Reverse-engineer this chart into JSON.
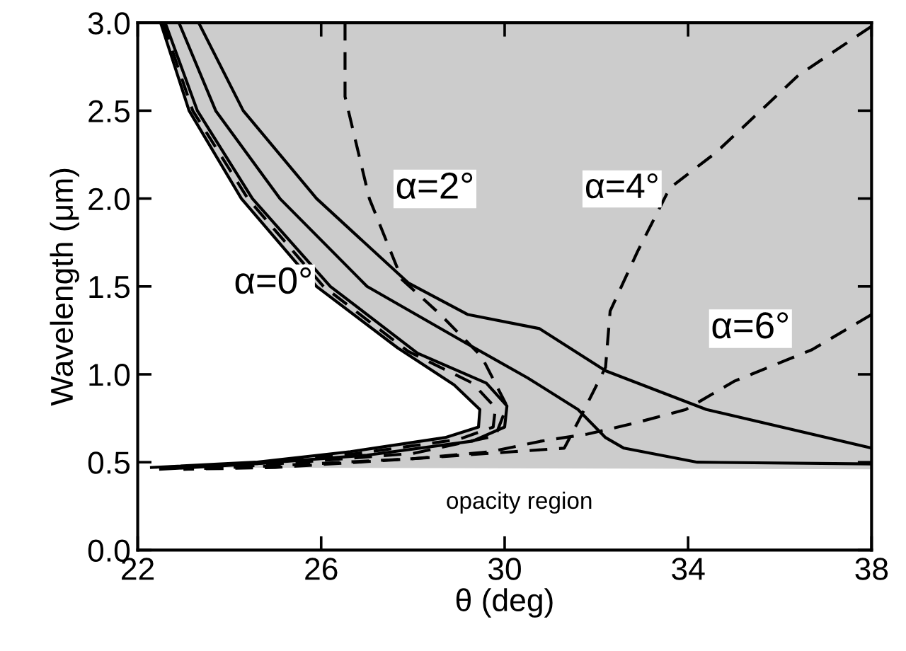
{
  "chart_data": {
    "type": "line",
    "xlabel": "θ (deg)",
    "ylabel": "Wavelength (μm)",
    "xlim": [
      22,
      38
    ],
    "xticks": [
      22,
      26,
      30,
      34,
      38
    ],
    "ylim": [
      0,
      3
    ],
    "yticks": [
      {
        "value": 0,
        "label": "0.0"
      },
      {
        "value": 0.5,
        "label": "0.5"
      },
      {
        "value": 1,
        "label": "1.0"
      },
      {
        "value": 1.5,
        "label": "1.5"
      },
      {
        "value": 2,
        "label": "2.0"
      },
      {
        "value": 2.5,
        "label": "2.5"
      },
      {
        "value": 3,
        "label": "3.0"
      }
    ],
    "grid": false,
    "legend": false,
    "series": [
      {
        "line_style": "dashed",
        "color": "#000000",
        "x": [
          22.55,
          23.2,
          24.4,
          26.05,
          27.9,
          29.3,
          29.8,
          29.75,
          29.0,
          26.8,
          24.5,
          22.4
        ],
        "values": [
          3.0,
          2.5,
          2.0,
          1.5,
          1.13,
          0.95,
          0.81,
          0.7,
          0.63,
          0.55,
          0.49,
          0.47
        ]
      },
      {
        "line_style": "solid",
        "color": "#000000",
        "x": [
          22.6,
          23.3,
          24.5,
          26.2,
          28.1,
          29.6,
          30.05,
          30.0,
          29.3,
          27.0,
          24.5,
          22.5
        ],
        "values": [
          3.0,
          2.5,
          2.0,
          1.5,
          1.12,
          0.95,
          0.82,
          0.7,
          0.62,
          0.54,
          0.49,
          0.46
        ]
      },
      {
        "line_style": "solid",
        "color": "#000000",
        "x": [
          22.9,
          23.7,
          25.1,
          27.0,
          29.14,
          30.5,
          31.6,
          32.2,
          32.6,
          34.2,
          38
        ],
        "values": [
          3.0,
          2.5,
          2.0,
          1.5,
          1.18,
          0.98,
          0.8,
          0.64,
          0.58,
          0.5,
          0.49
        ]
      },
      {
        "line_style": "solid",
        "color": "#000000",
        "x": [
          23.33,
          24.3,
          25.9,
          27.9,
          29.2,
          30.76,
          32.2,
          34.4,
          38
        ],
        "values": [
          3.0,
          2.5,
          2.0,
          1.52,
          1.34,
          1.26,
          1.02,
          0.8,
          0.58
        ]
      },
      {
        "line_style": "dashed",
        "color": "#000000",
        "x": [
          26.52,
          26.52,
          27.05,
          27.76,
          28.6,
          29.5,
          30.05,
          29.8,
          28.0,
          25.0,
          24.0
        ],
        "values": [
          3.0,
          2.58,
          2.0,
          1.54,
          1.34,
          1.1,
          0.82,
          0.65,
          0.55,
          0.49,
          0.47
        ]
      },
      {
        "line_style": "dashed",
        "color": "#000000",
        "x": [
          38,
          36.4,
          34.6,
          33.6,
          32.9,
          32.3,
          32.2,
          31.7,
          31.3,
          30.2,
          28.0,
          25.0,
          23.0
        ],
        "values": [
          2.98,
          2.7,
          2.26,
          2.06,
          1.7,
          1.36,
          1.04,
          0.78,
          0.58,
          0.56,
          0.52,
          0.47,
          0.46
        ]
      },
      {
        "line_style": "dashed",
        "color": "#000000",
        "x": [
          38,
          36.7,
          35.0,
          33.95,
          32.8,
          31.8,
          30.8,
          29.7,
          28.0,
          25.0,
          23.0
        ],
        "values": [
          1.34,
          1.14,
          0.96,
          0.8,
          0.72,
          0.66,
          0.62,
          0.56,
          0.52,
          0.48,
          0.46
        ]
      },
      {
        "type": "area",
        "color": "#cccccc",
        "x": [
          22.5,
          23.12,
          24.26,
          25.9,
          27.67,
          28.9,
          29.46,
          29.43,
          28.7,
          26.64,
          24.57,
          22.3,
          38,
          38
        ],
        "values": [
          3.0,
          2.5,
          2.0,
          1.5,
          1.15,
          0.94,
          0.8,
          0.7,
          0.64,
          0.56,
          0.5,
          0.47,
          0.46,
          3.0
        ]
      }
    ],
    "annotations": [
      "α=0°",
      "α=2°",
      "α=4°",
      "α=6°",
      "opacity region"
    ]
  }
}
